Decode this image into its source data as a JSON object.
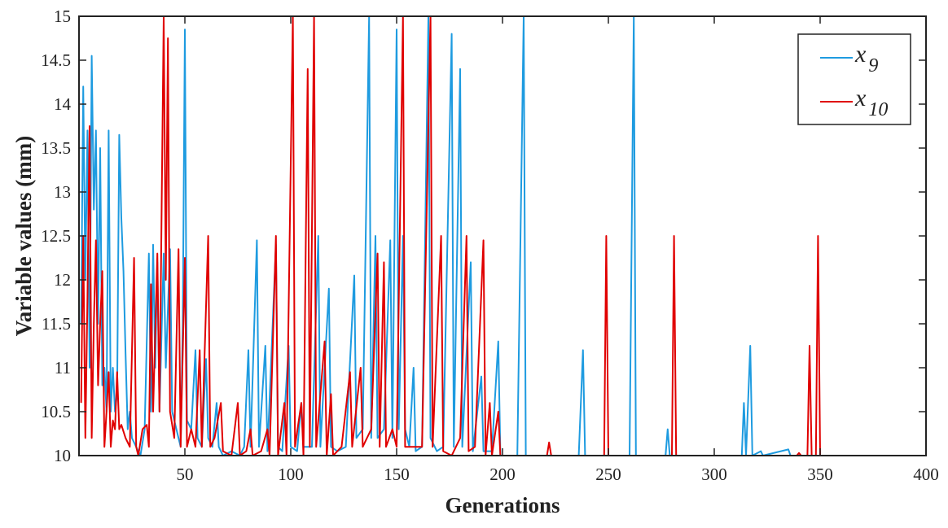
{
  "chart_data": {
    "type": "line",
    "title": "",
    "xlabel": "Generations",
    "ylabel": "Variable values (mm)",
    "xlim": [
      0,
      400
    ],
    "ylim": [
      10,
      15
    ],
    "xticks": [
      50,
      100,
      150,
      200,
      250,
      300,
      350,
      400
    ],
    "yticks": [
      10,
      10.5,
      11,
      11.5,
      12,
      12.5,
      13,
      13.5,
      14,
      14.5,
      15
    ],
    "grid": false,
    "legend_placement": "top-right",
    "series": [
      {
        "name": "x9",
        "legend_base": "x",
        "legend_sub": "9",
        "color": "#1e9be0",
        "points": [
          [
            1,
            11.5
          ],
          [
            2,
            14.2
          ],
          [
            3,
            12
          ],
          [
            4,
            13.7
          ],
          [
            5,
            11
          ],
          [
            6,
            14.55
          ],
          [
            7,
            12.8
          ],
          [
            8,
            13.7
          ],
          [
            9,
            11.5
          ],
          [
            10,
            13.5
          ],
          [
            11,
            10.8
          ],
          [
            12,
            11
          ],
          [
            13,
            10.5
          ],
          [
            14,
            13.7
          ],
          [
            15,
            10.5
          ],
          [
            16,
            11
          ],
          [
            17,
            10.5
          ],
          [
            18,
            10.7
          ],
          [
            19,
            13.65
          ],
          [
            20,
            12.7
          ],
          [
            21,
            12.1
          ],
          [
            22,
            11.15
          ],
          [
            23,
            10.3
          ],
          [
            24,
            10.5
          ],
          [
            25,
            10.2
          ],
          [
            27,
            10.1
          ],
          [
            29,
            10
          ],
          [
            31,
            10.3
          ],
          [
            33,
            12.3
          ],
          [
            34,
            10.5
          ],
          [
            35,
            12.4
          ],
          [
            36,
            11
          ],
          [
            37,
            12.2
          ],
          [
            38,
            10.5
          ],
          [
            40,
            12.3
          ],
          [
            41,
            11
          ],
          [
            43,
            12.35
          ],
          [
            44,
            10.5
          ],
          [
            46,
            10.3
          ],
          [
            48,
            10.1
          ],
          [
            49,
            11.5
          ],
          [
            50,
            14.85
          ],
          [
            51,
            10.4
          ],
          [
            53,
            10.3
          ],
          [
            55,
            11.2
          ],
          [
            56,
            10.2
          ],
          [
            58,
            10.1
          ],
          [
            60,
            11.1
          ],
          [
            61,
            10.2
          ],
          [
            63,
            10.1
          ],
          [
            65,
            10.6
          ],
          [
            66,
            10.1
          ],
          [
            68,
            10
          ],
          [
            72,
            10.05
          ],
          [
            76,
            10
          ],
          [
            78,
            10.1
          ],
          [
            80,
            11.2
          ],
          [
            81,
            10.1
          ],
          [
            84,
            12.45
          ],
          [
            85,
            10.1
          ],
          [
            88,
            11.25
          ],
          [
            89,
            10.05
          ],
          [
            93,
            12.4
          ],
          [
            94,
            10.1
          ],
          [
            96,
            10.05
          ],
          [
            99,
            11.25
          ],
          [
            100,
            10.1
          ],
          [
            103,
            10.05
          ],
          [
            105,
            10.6
          ],
          [
            106,
            10.1
          ],
          [
            110,
            10.1
          ],
          [
            113,
            12.5
          ],
          [
            114,
            10.1
          ],
          [
            118,
            11.9
          ],
          [
            119,
            10.1
          ],
          [
            122,
            10.05
          ],
          [
            126,
            10.1
          ],
          [
            130,
            12.05
          ],
          [
            131,
            10.2
          ],
          [
            134,
            10.3
          ],
          [
            137,
            15
          ],
          [
            138,
            10.2
          ],
          [
            140,
            12.5
          ],
          [
            141,
            10.2
          ],
          [
            144,
            10.3
          ],
          [
            147,
            12.45
          ],
          [
            148,
            10.2
          ],
          [
            150,
            14.85
          ],
          [
            151,
            10.3
          ],
          [
            153,
            12.5
          ],
          [
            154,
            10.3
          ],
          [
            156,
            10.1
          ],
          [
            158,
            11
          ],
          [
            159,
            10.05
          ],
          [
            162,
            10.1
          ],
          [
            165,
            15
          ],
          [
            166,
            10.2
          ],
          [
            169,
            10.05
          ],
          [
            172,
            10.1
          ],
          [
            176,
            14.8
          ],
          [
            177,
            10.1
          ],
          [
            180,
            14.4
          ],
          [
            181,
            10.1
          ],
          [
            185,
            12.2
          ],
          [
            186,
            10.05
          ],
          [
            190,
            10.9
          ],
          [
            191,
            10.05
          ],
          [
            195,
            10.05
          ],
          [
            198,
            11.3
          ],
          [
            199,
            10
          ],
          [
            207,
            10
          ],
          [
            210,
            15
          ],
          [
            211,
            10
          ],
          [
            236,
            10
          ],
          [
            238,
            11.2
          ],
          [
            239,
            10
          ],
          [
            260,
            10
          ],
          [
            262,
            15
          ],
          [
            263,
            10
          ],
          [
            277,
            10
          ],
          [
            278,
            10.3
          ],
          [
            279,
            10
          ],
          [
            313,
            10
          ],
          [
            314,
            10.6
          ],
          [
            315,
            10
          ],
          [
            317,
            11.25
          ],
          [
            318,
            10
          ],
          [
            322,
            10.05
          ],
          [
            323,
            10
          ],
          [
            335,
            10.07
          ],
          [
            336,
            10
          ],
          [
            355,
            10
          ]
        ]
      },
      {
        "name": "x10",
        "legend_base": "x",
        "legend_sub": "10",
        "color": "#e00000",
        "points": [
          [
            1,
            10.6
          ],
          [
            2,
            12.5
          ],
          [
            3,
            10.2
          ],
          [
            4,
            11.8
          ],
          [
            5,
            13.75
          ],
          [
            6,
            10.2
          ],
          [
            7,
            11.5
          ],
          [
            8,
            12.45
          ],
          [
            9,
            10.8
          ],
          [
            10,
            11.5
          ],
          [
            11,
            12.1
          ],
          [
            12,
            10.1
          ],
          [
            13,
            10.5
          ],
          [
            14,
            10.95
          ],
          [
            15,
            10.1
          ],
          [
            16,
            10.4
          ],
          [
            17,
            10.3
          ],
          [
            18,
            10.95
          ],
          [
            19,
            10.3
          ],
          [
            20,
            10.35
          ],
          [
            22,
            10.2
          ],
          [
            24,
            10.1
          ],
          [
            26,
            12.25
          ],
          [
            27,
            10.1
          ],
          [
            28,
            10
          ],
          [
            30,
            10.3
          ],
          [
            32,
            10.35
          ],
          [
            33,
            10.1
          ],
          [
            34,
            11.95
          ],
          [
            35,
            10.5
          ],
          [
            37,
            12.3
          ],
          [
            38,
            10.5
          ],
          [
            40,
            15
          ],
          [
            41,
            12
          ],
          [
            42,
            14.75
          ],
          [
            43,
            10.5
          ],
          [
            45,
            10.2
          ],
          [
            47,
            12.35
          ],
          [
            48,
            10.1
          ],
          [
            50,
            12.25
          ],
          [
            51,
            10.1
          ],
          [
            53,
            10.3
          ],
          [
            55,
            10.1
          ],
          [
            57,
            11.2
          ],
          [
            58,
            10.1
          ],
          [
            61,
            12.5
          ],
          [
            62,
            10.1
          ],
          [
            64,
            10.2
          ],
          [
            67,
            10.6
          ],
          [
            68,
            10.05
          ],
          [
            72,
            10
          ],
          [
            75,
            10.6
          ],
          [
            76,
            10
          ],
          [
            79,
            10.05
          ],
          [
            81,
            10.3
          ],
          [
            82,
            10
          ],
          [
            86,
            10.05
          ],
          [
            89,
            10.3
          ],
          [
            90,
            10
          ],
          [
            93,
            12.5
          ],
          [
            94,
            10
          ],
          [
            97,
            10.6
          ],
          [
            98,
            10
          ],
          [
            101,
            15
          ],
          [
            102,
            10.1
          ],
          [
            105,
            10.6
          ],
          [
            106,
            10
          ],
          [
            108,
            14.4
          ],
          [
            109,
            10.1
          ],
          [
            111,
            15
          ],
          [
            112,
            10.1
          ],
          [
            116,
            11.3
          ],
          [
            117,
            10
          ],
          [
            119,
            10.7
          ],
          [
            120,
            10
          ],
          [
            124,
            10.1
          ],
          [
            128,
            10.95
          ],
          [
            129,
            10.1
          ],
          [
            133,
            11
          ],
          [
            134,
            10.1
          ],
          [
            138,
            10.3
          ],
          [
            141,
            12.3
          ],
          [
            142,
            10.1
          ],
          [
            144,
            12.2
          ],
          [
            145,
            10.1
          ],
          [
            148,
            10.3
          ],
          [
            150,
            10.1
          ],
          [
            153,
            15
          ],
          [
            154,
            10.1
          ],
          [
            158,
            10.1
          ],
          [
            162,
            10.1
          ],
          [
            166,
            15
          ],
          [
            167,
            10.1
          ],
          [
            171,
            12.5
          ],
          [
            172,
            10.05
          ],
          [
            176,
            10
          ],
          [
            180,
            10.2
          ],
          [
            183,
            12.5
          ],
          [
            184,
            10.05
          ],
          [
            187,
            10.1
          ],
          [
            191,
            12.45
          ],
          [
            192,
            10
          ],
          [
            194,
            10.6
          ],
          [
            195,
            10
          ],
          [
            198,
            10.5
          ],
          [
            199,
            10
          ],
          [
            221,
            10
          ],
          [
            222,
            10.15
          ],
          [
            223,
            10
          ],
          [
            248,
            10
          ],
          [
            249,
            12.5
          ],
          [
            250,
            10
          ],
          [
            280,
            10
          ],
          [
            281,
            12.5
          ],
          [
            282,
            10
          ],
          [
            339,
            10
          ],
          [
            340,
            10.03
          ],
          [
            341,
            10
          ],
          [
            344,
            10
          ],
          [
            345,
            11.25
          ],
          [
            346,
            10
          ],
          [
            348,
            10
          ],
          [
            349,
            12.5
          ],
          [
            350,
            10
          ],
          [
            355,
            10
          ]
        ]
      }
    ]
  }
}
